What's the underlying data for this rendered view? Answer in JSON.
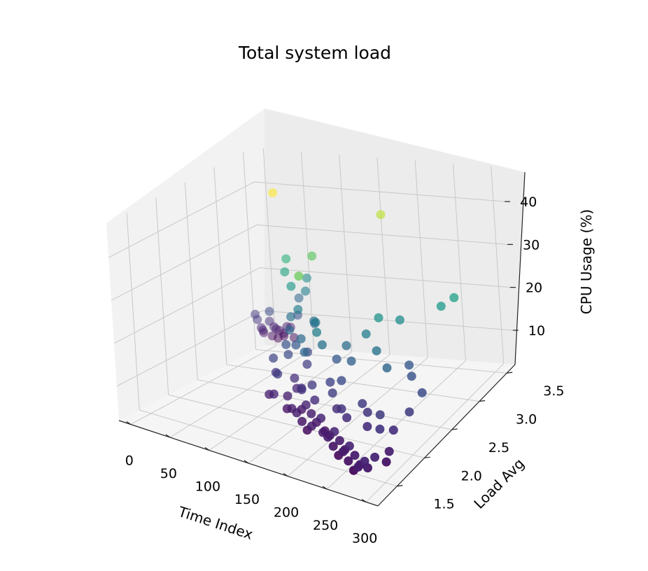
{
  "chart_data": {
    "type": "scatter-3d",
    "title": "Total system load",
    "xlabel": "Time Index",
    "ylabel": "Load Avg",
    "zlabel": "CPU Usage (%)",
    "xlim": [
      -15,
      315
    ],
    "ylim": [
      1.15,
      3.65
    ],
    "zlim": [
      2,
      48
    ],
    "x_ticks": [
      "0",
      "50",
      "100",
      "150",
      "200",
      "250",
      "300"
    ],
    "y_ticks": [
      "1.5",
      "2.0",
      "2.5",
      "3.0",
      "3.5"
    ],
    "z_ticks": [
      "10",
      "20",
      "30",
      "40"
    ],
    "grid": true,
    "colormap": "viridis",
    "color_by": "z",
    "points": [
      {
        "x": 5,
        "y": 3.4,
        "z": 7
      },
      {
        "x": 8,
        "y": 3.35,
        "z": 8
      },
      {
        "x": 10,
        "y": 3.3,
        "z": 9
      },
      {
        "x": 12,
        "y": 3.45,
        "z": 6
      },
      {
        "x": 15,
        "y": 3.38,
        "z": 10
      },
      {
        "x": 18,
        "y": 3.5,
        "z": 7
      },
      {
        "x": 20,
        "y": 3.42,
        "z": 8
      },
      {
        "x": 3,
        "y": 3.3,
        "z": 12
      },
      {
        "x": 22,
        "y": 3.36,
        "z": 9
      },
      {
        "x": 25,
        "y": 3.48,
        "z": 6
      },
      {
        "x": 14,
        "y": 3.52,
        "z": 5
      },
      {
        "x": 28,
        "y": 3.44,
        "z": 7
      },
      {
        "x": 30,
        "y": 3.2,
        "z": 14
      },
      {
        "x": 7,
        "y": 3.28,
        "z": 11
      },
      {
        "x": 33,
        "y": 3.5,
        "z": 8
      },
      {
        "x": 36,
        "y": 3.4,
        "z": 9
      },
      {
        "x": 40,
        "y": 3.46,
        "z": 6
      },
      {
        "x": 60,
        "y": 3.0,
        "z": 44
      },
      {
        "x": 80,
        "y": 2.9,
        "z": 30
      },
      {
        "x": 85,
        "y": 2.8,
        "z": 28
      },
      {
        "x": 90,
        "y": 3.1,
        "z": 24
      },
      {
        "x": 95,
        "y": 3.0,
        "z": 22
      },
      {
        "x": 100,
        "y": 2.7,
        "z": 26
      },
      {
        "x": 105,
        "y": 2.6,
        "z": 20
      },
      {
        "x": 70,
        "y": 3.2,
        "z": 18
      },
      {
        "x": 75,
        "y": 3.1,
        "z": 15
      },
      {
        "x": 110,
        "y": 2.5,
        "z": 18
      },
      {
        "x": 115,
        "y": 2.6,
        "z": 22
      },
      {
        "x": 120,
        "y": 2.8,
        "z": 17
      },
      {
        "x": 125,
        "y": 2.4,
        "z": 16
      },
      {
        "x": 130,
        "y": 2.7,
        "z": 34
      },
      {
        "x": 135,
        "y": 2.6,
        "z": 20
      },
      {
        "x": 140,
        "y": 2.3,
        "z": 19
      },
      {
        "x": 145,
        "y": 2.5,
        "z": 21
      },
      {
        "x": 150,
        "y": 2.2,
        "z": 35
      },
      {
        "x": 108,
        "y": 2.45,
        "z": 15
      },
      {
        "x": 118,
        "y": 2.35,
        "z": 14
      },
      {
        "x": 128,
        "y": 2.55,
        "z": 13
      },
      {
        "x": 138,
        "y": 2.4,
        "z": 12
      },
      {
        "x": 112,
        "y": 2.2,
        "z": 11
      },
      {
        "x": 122,
        "y": 2.1,
        "z": 12
      },
      {
        "x": 132,
        "y": 2.25,
        "z": 10
      },
      {
        "x": 142,
        "y": 2.15,
        "z": 9
      },
      {
        "x": 102,
        "y": 2.3,
        "z": 13
      },
      {
        "x": 117,
        "y": 2.0,
        "z": 8
      },
      {
        "x": 127,
        "y": 1.95,
        "z": 9
      },
      {
        "x": 137,
        "y": 2.05,
        "z": 8
      },
      {
        "x": 147,
        "y": 1.9,
        "z": 7
      },
      {
        "x": 152,
        "y": 2.1,
        "z": 10
      },
      {
        "x": 157,
        "y": 1.85,
        "z": 8
      },
      {
        "x": 162,
        "y": 1.95,
        "z": 7
      },
      {
        "x": 167,
        "y": 1.8,
        "z": 8
      },
      {
        "x": 172,
        "y": 1.9,
        "z": 9
      },
      {
        "x": 177,
        "y": 1.75,
        "z": 7
      },
      {
        "x": 182,
        "y": 1.85,
        "z": 8
      },
      {
        "x": 187,
        "y": 1.7,
        "z": 6
      },
      {
        "x": 192,
        "y": 1.8,
        "z": 7
      },
      {
        "x": 197,
        "y": 1.65,
        "z": 8
      },
      {
        "x": 202,
        "y": 1.75,
        "z": 9
      },
      {
        "x": 160,
        "y": 2.0,
        "z": 11
      },
      {
        "x": 170,
        "y": 2.05,
        "z": 12
      },
      {
        "x": 180,
        "y": 1.95,
        "z": 10
      },
      {
        "x": 190,
        "y": 2.1,
        "z": 13
      },
      {
        "x": 200,
        "y": 2.0,
        "z": 12
      },
      {
        "x": 155,
        "y": 2.15,
        "z": 18
      },
      {
        "x": 165,
        "y": 2.25,
        "z": 22
      },
      {
        "x": 175,
        "y": 2.2,
        "z": 20
      },
      {
        "x": 185,
        "y": 2.3,
        "z": 16
      },
      {
        "x": 210,
        "y": 1.7,
        "z": 7
      },
      {
        "x": 215,
        "y": 1.6,
        "z": 8
      },
      {
        "x": 220,
        "y": 1.65,
        "z": 7
      },
      {
        "x": 225,
        "y": 1.55,
        "z": 8
      },
      {
        "x": 230,
        "y": 1.6,
        "z": 9
      },
      {
        "x": 235,
        "y": 1.5,
        "z": 7
      },
      {
        "x": 240,
        "y": 1.55,
        "z": 8
      },
      {
        "x": 245,
        "y": 1.45,
        "z": 6
      },
      {
        "x": 250,
        "y": 1.5,
        "z": 7
      },
      {
        "x": 255,
        "y": 1.4,
        "z": 8
      },
      {
        "x": 260,
        "y": 1.45,
        "z": 9
      },
      {
        "x": 265,
        "y": 1.35,
        "z": 7
      },
      {
        "x": 270,
        "y": 1.4,
        "z": 8
      },
      {
        "x": 275,
        "y": 1.3,
        "z": 6
      },
      {
        "x": 280,
        "y": 1.35,
        "z": 7
      },
      {
        "x": 285,
        "y": 1.25,
        "z": 8
      },
      {
        "x": 290,
        "y": 1.3,
        "z": 9
      },
      {
        "x": 295,
        "y": 1.28,
        "z": 8
      },
      {
        "x": 212,
        "y": 1.9,
        "z": 10
      },
      {
        "x": 222,
        "y": 1.85,
        "z": 11
      },
      {
        "x": 232,
        "y": 1.8,
        "z": 10
      },
      {
        "x": 242,
        "y": 1.95,
        "z": 12
      },
      {
        "x": 252,
        "y": 1.9,
        "z": 11
      },
      {
        "x": 262,
        "y": 1.75,
        "z": 10
      },
      {
        "x": 272,
        "y": 1.85,
        "z": 12
      },
      {
        "x": 282,
        "y": 1.7,
        "z": 11
      },
      {
        "x": 292,
        "y": 1.8,
        "z": 10
      },
      {
        "x": 218,
        "y": 2.4,
        "z": 22
      },
      {
        "x": 228,
        "y": 2.5,
        "z": 25
      },
      {
        "x": 238,
        "y": 2.3,
        "z": 20
      },
      {
        "x": 248,
        "y": 2.6,
        "z": 24
      },
      {
        "x": 258,
        "y": 2.2,
        "z": 18
      },
      {
        "x": 268,
        "y": 2.45,
        "z": 16
      },
      {
        "x": 278,
        "y": 2.35,
        "z": 15
      },
      {
        "x": 288,
        "y": 2.8,
        "z": 26
      },
      {
        "x": 298,
        "y": 2.9,
        "z": 27
      },
      {
        "x": 205,
        "y": 2.1,
        "z": 14
      },
      {
        "x": 208,
        "y": 2.25,
        "z": 17
      },
      {
        "x": 195,
        "y": 2.35,
        "z": 19
      },
      {
        "x": 300,
        "y": 1.6,
        "z": 8
      },
      {
        "x": 303,
        "y": 1.5,
        "z": 7
      },
      {
        "x": 296,
        "y": 1.4,
        "z": 9
      },
      {
        "x": 299,
        "y": 2.0,
        "z": 12
      },
      {
        "x": 302,
        "y": 2.2,
        "z": 14
      },
      {
        "x": 185,
        "y": 3.2,
        "z": 40
      }
    ]
  }
}
